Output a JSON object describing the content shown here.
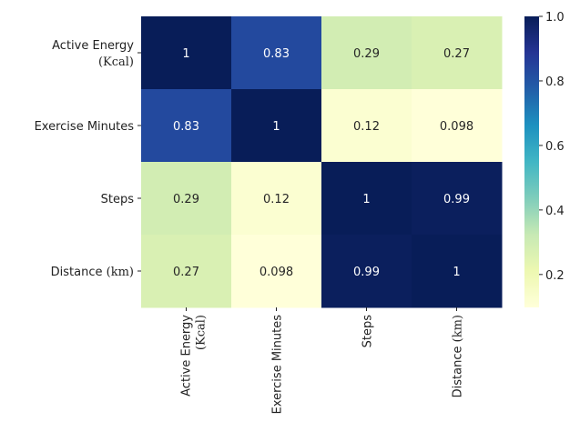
{
  "chart_data": {
    "type": "heatmap",
    "title": "",
    "colormap": "YlGnBu",
    "value_range": [
      0.098,
      1.0
    ],
    "row_labels": [
      {
        "main": "Active Energy",
        "unit": "(Kcal)"
      },
      {
        "main": "Exercise Minutes",
        "unit": ""
      },
      {
        "main": "Steps",
        "unit": ""
      },
      {
        "main": "Distance",
        "unit": "(km)"
      }
    ],
    "column_labels": [
      {
        "main": "Active Energy",
        "unit": "(Kcal)"
      },
      {
        "main": "Exercise Minutes",
        "unit": ""
      },
      {
        "main": "Steps",
        "unit": ""
      },
      {
        "main": "Distance",
        "unit": "(km)"
      }
    ],
    "values": [
      [
        1,
        0.83,
        0.29,
        0.27
      ],
      [
        0.83,
        1,
        0.12,
        0.098
      ],
      [
        0.29,
        0.12,
        1,
        0.99
      ],
      [
        0.27,
        0.098,
        0.99,
        1
      ]
    ],
    "annotations": [
      [
        "1",
        "0.83",
        "0.29",
        "0.27"
      ],
      [
        "0.83",
        "1",
        "0.12",
        "0.098"
      ],
      [
        "0.29",
        "0.12",
        "1",
        "0.99"
      ],
      [
        "0.27",
        "0.098",
        "0.99",
        "1"
      ]
    ],
    "colorbar": {
      "ticks": [
        "1.0",
        "0.8",
        "0.6",
        "0.4",
        "0.2"
      ],
      "tick_values": [
        1.0,
        0.8,
        0.6,
        0.4,
        0.2
      ]
    }
  }
}
